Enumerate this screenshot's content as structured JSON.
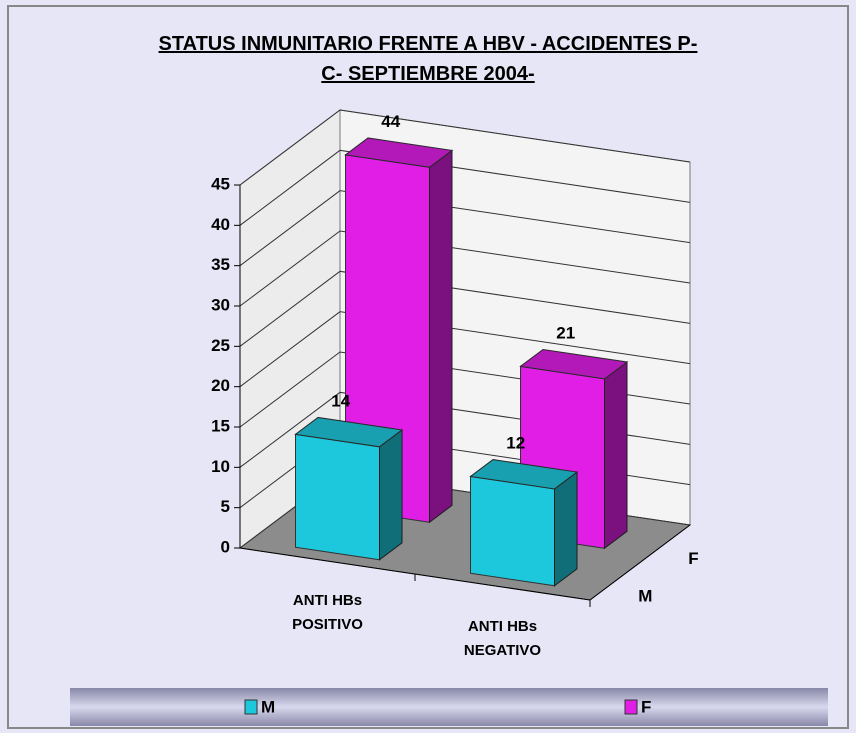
{
  "chart_data": {
    "type": "bar3d",
    "title": [
      "STATUS INMUNITARIO FRENTE A HBV - ACCIDENTES P-",
      "C- SEPTIEMBRE 2004-"
    ],
    "categories": [
      "ANTI HBs POSITIVO",
      "ANTI HBs NEGATIVO"
    ],
    "series": [
      {
        "name": "M",
        "color": "#1ec8dc",
        "values": [
          14,
          12
        ]
      },
      {
        "name": "F",
        "color": "#e01ee6",
        "values": [
          44,
          21
        ]
      }
    ],
    "ylim": [
      0,
      45
    ],
    "yticks": [
      0,
      5,
      10,
      15,
      20,
      25,
      30,
      35,
      40,
      45
    ],
    "grid": true,
    "legend": "bottom"
  }
}
